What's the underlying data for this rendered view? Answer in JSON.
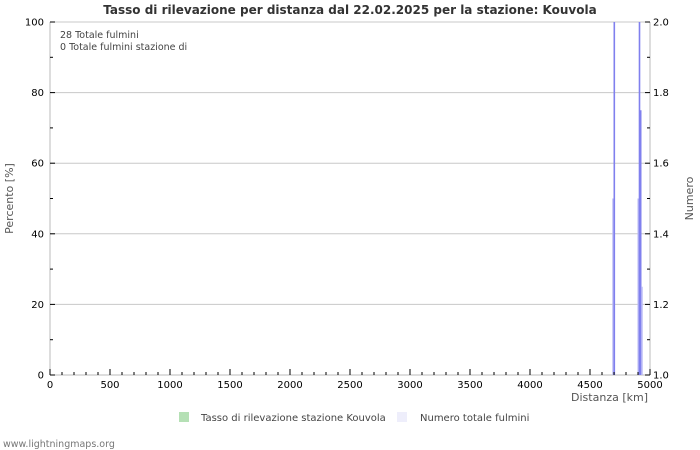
{
  "title": "Tasso di rilevazione per distanza dal 22.02.2025 per la stazione: Kouvola",
  "info_lines": [
    "28 Totale fulmini",
    "0 Totale fulmini stazione di"
  ],
  "footer": "www.lightningmaps.org",
  "legend": [
    {
      "label": "Tasso di rilevazione stazione Kouvola",
      "color": "#b5e0b5"
    },
    {
      "label": "Numero totale fulmini",
      "color": "#eeeefb"
    }
  ],
  "colors": {
    "line": "#8080ee",
    "line_light": "#b8b8f4",
    "grid": "#c8c8c8",
    "axis": "#bbbbbb"
  },
  "chart_data": {
    "type": "bar",
    "title": "Tasso di rilevazione per distanza dal 22.02.2025 per la stazione: Kouvola",
    "xlabel": "Distanza   [km]",
    "ylabel": "Percento   [%]",
    "y2label": "Numero",
    "xlim": [
      0,
      5000
    ],
    "ylim": [
      0,
      100
    ],
    "y2lim": [
      1.0,
      2.0
    ],
    "xticks": [
      0,
      500,
      1000,
      1500,
      2000,
      2500,
      3000,
      3500,
      4000,
      4500,
      5000
    ],
    "yticks": [
      0,
      20,
      40,
      60,
      80,
      100
    ],
    "y2ticks": [
      "1.0",
      "1.2",
      "1.4",
      "1.6",
      "1.8",
      "2.0"
    ],
    "grid": true,
    "legend_position": "bottom",
    "series": [
      {
        "name": "Tasso di rilevazione stazione Kouvola",
        "axis": "left",
        "x": [],
        "values": []
      },
      {
        "name": "Numero totale fulmini",
        "axis": "right",
        "x": [
          4690,
          4700,
          4900,
          4910,
          4920,
          4930
        ],
        "values": [
          1.5,
          2.0,
          1.5,
          2.0,
          1.75,
          1.25
        ]
      }
    ]
  }
}
